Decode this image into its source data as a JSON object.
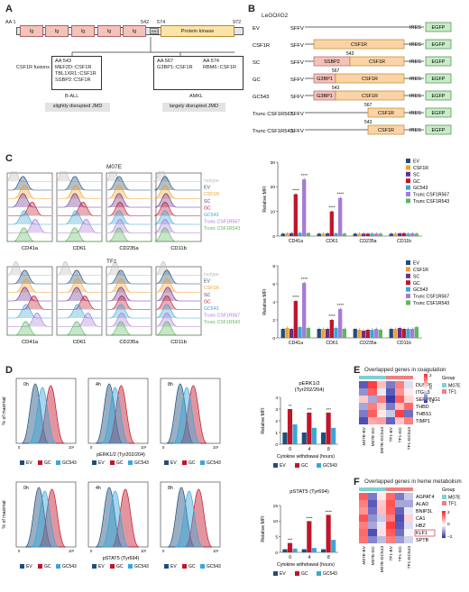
{
  "panels": {
    "A": "A",
    "B": "B",
    "C": "C",
    "D": "D",
    "E": "E",
    "F": "F"
  },
  "panelA": {
    "aa_start": "AA 1",
    "aa_end": "972",
    "aa_542": "542",
    "aa_574": "574",
    "domains": [
      "Ig",
      "Ig",
      "Ig",
      "Ig",
      "Ig"
    ],
    "jmd_label": "JMD",
    "kinase_label": "Protein kinase",
    "fusions_label": "CSF1R fusions",
    "ball_box": [
      "AA 543",
      "MEF2D::CSF1R",
      "TBL1XR1::CSF1R",
      "SSBP2::CSF1R"
    ],
    "amkl_box1": [
      "AA 567",
      "G3BP1::CSF1R"
    ],
    "amkl_box2": [
      "AA 574",
      "RBM6::CSF1R"
    ],
    "ball_label": "B-ALL",
    "amkl_label": "AMKL",
    "ball_jmd": "slightly disrupted JMD",
    "amkl_jmd": "largely disrupted JMD"
  },
  "panelB": {
    "title": "LeGO/iG2",
    "constructs": [
      {
        "name": "EV",
        "promoter": "SFFV",
        "parts": [],
        "ires": "IRES",
        "egfp": "EGFP",
        "num": ""
      },
      {
        "name": "CSF1R",
        "promoter": "SFFV",
        "parts": [
          "CSF1R"
        ],
        "ires": "IRES",
        "egfp": "EGFP",
        "num": ""
      },
      {
        "name": "SC",
        "promoter": "SFFV",
        "parts": [
          "SSBP2",
          "CSF1R"
        ],
        "ires": "IRES",
        "egfp": "EGFP",
        "num": "543"
      },
      {
        "name": "GC",
        "promoter": "SFFV",
        "parts": [
          "G3BP1",
          "CSF1R"
        ],
        "ires": "IRES",
        "egfp": "EGFP",
        "num": "567"
      },
      {
        "name": "GC543",
        "promoter": "SFFV",
        "parts": [
          "G3BP1",
          "CSF1R"
        ],
        "ires": "IRES",
        "egfp": "EGFP",
        "num": "543"
      },
      {
        "name": "Trunc CSF1R567",
        "promoter": "SFFV",
        "parts": [
          "CSF1R"
        ],
        "ires": "IRES",
        "egfp": "EGFP",
        "num": "567"
      },
      {
        "name": "Trunc CSF1R543",
        "promoter": "SFFV",
        "parts": [
          "CSF1R"
        ],
        "ires": "IRES",
        "egfp": "EGFP",
        "num": "543"
      }
    ]
  },
  "panelC": {
    "m07e_title": "M07E",
    "tf1_title": "TF1",
    "markers": [
      "CD41a",
      "CD61",
      "CD235a",
      "CD11b"
    ],
    "legend_hist": [
      "Isotype",
      "EV",
      "CSF1R",
      "SC",
      "GC",
      "GC543",
      "Trunc CSF1R567",
      "Trunc CSF1R543"
    ],
    "ylabel": "Relative MFI",
    "legend_bar": [
      "EV",
      "CSF1R",
      "SC",
      "GC",
      "GC543",
      "Trunc CSF1R567",
      "Trunc CSF1R543"
    ],
    "sig": "****"
  },
  "panelD": {
    "erk_axis": "pERK1/2 (Tyr202/204)",
    "stat_axis": "pSTAT5 (Tyr694)",
    "hist_ylabel": "% of maximal",
    "times": [
      "0h",
      "4h",
      "8h"
    ],
    "legend": [
      "EV",
      "GC",
      "GC543"
    ],
    "erk_title": "pERK1/2",
    "erk_sub": "(Tyr202/204)",
    "stat_title": "pSTAT5 (Tyr694)",
    "bar_ylabel": "Relative MFI",
    "xlabel": "Cytokine withdrawal (hours)",
    "xticks": [
      "0",
      "4",
      "8"
    ],
    "sig": [
      "**",
      "***",
      "***",
      "****",
      "*"
    ]
  },
  "panelE": {
    "title": "Overlapped genes in coagulation",
    "genes": [
      "DUSP6",
      "ITGB3",
      "SERPING1",
      "THBD",
      "THBS1",
      "TIMP1"
    ],
    "columns": [
      "M07E-EV",
      "M07E-GC",
      "M07E-GC543",
      "TF1-EV",
      "TF1-GC",
      "TF1-GC543"
    ],
    "legend_title": "Group",
    "groups": [
      "M07E",
      "TF1"
    ],
    "scale": [
      "2",
      "0",
      "−2"
    ]
  },
  "panelF": {
    "title": "Overlapped genes in heme metabolism",
    "genes": [
      "AGPAT4",
      "ALAD",
      "BNIP3L",
      "CA1",
      "HBZ",
      "KLF1",
      "SPTB"
    ],
    "columns": [
      "M07E-EV",
      "M07E-GC",
      "M07E-GC543",
      "TF1-EV",
      "TF1-GC",
      "TF1-GC543"
    ],
    "legend_title": "Group",
    "groups": [
      "M07E",
      "TF1"
    ],
    "scale": [
      "2",
      "0",
      "−2"
    ]
  },
  "colors": {
    "EV": "#1f4e79",
    "CSF1R": "#f0a030",
    "SC": "#6b2f8a",
    "GC": "#c0152a",
    "GC543": "#3aa6d8",
    "Trunc567": "#a67bd6",
    "Trunc543": "#5cb85c",
    "Isotype": "#bbbbbb",
    "M07E": "#7fd1d1",
    "TF1": "#f08080"
  },
  "chart_data": [
    {
      "type": "bar",
      "title": "M07E",
      "ylabel": "Relative MFI",
      "categories": [
        "CD41a",
        "CD61",
        "CD235a",
        "CD11b"
      ],
      "ylim": [
        0,
        30
      ],
      "series": [
        {
          "name": "EV",
          "values": [
            1,
            1,
            1,
            1
          ]
        },
        {
          "name": "CSF1R",
          "values": [
            1.1,
            1.0,
            1.0,
            1.0
          ]
        },
        {
          "name": "SC",
          "values": [
            1.2,
            1.1,
            1.0,
            1.1
          ]
        },
        {
          "name": "GC",
          "values": [
            17,
            10,
            1.0,
            1.2
          ]
        },
        {
          "name": "GC543",
          "values": [
            1.3,
            1.1,
            1.0,
            1.0
          ]
        },
        {
          "name": "Trunc CSF1R567",
          "values": [
            23,
            15.5,
            1.0,
            1.1
          ]
        },
        {
          "name": "Trunc CSF1R543",
          "values": [
            1.2,
            1.0,
            1.0,
            1.0
          ]
        }
      ]
    },
    {
      "type": "bar",
      "title": "TF1",
      "ylabel": "Relative MFI",
      "categories": [
        "CD41a",
        "CD61",
        "CD235a",
        "CD11b"
      ],
      "ylim": [
        0,
        8
      ],
      "series": [
        {
          "name": "EV",
          "values": [
            1,
            1,
            1,
            1
          ]
        },
        {
          "name": "CSF1R",
          "values": [
            1.1,
            1.0,
            0.9,
            1.0
          ]
        },
        {
          "name": "SC",
          "values": [
            1.0,
            1.0,
            0.8,
            1.1
          ]
        },
        {
          "name": "GC",
          "values": [
            4.1,
            2.0,
            0.9,
            1.0
          ]
        },
        {
          "name": "GC543",
          "values": [
            1.2,
            1.1,
            0.9,
            1.0
          ]
        },
        {
          "name": "Trunc CSF1R567",
          "values": [
            6.1,
            3.2,
            1.0,
            1.0
          ]
        },
        {
          "name": "Trunc CSF1R543",
          "values": [
            1.1,
            1.0,
            0.9,
            1.2
          ]
        }
      ]
    },
    {
      "type": "bar",
      "title": "pERK1/2 (Tyr202/204)",
      "ylabel": "Relative MFI",
      "xlabel": "Cytokine withdrawal (hours)",
      "categories": [
        "0",
        "4",
        "8"
      ],
      "ylim": [
        0,
        4
      ],
      "series": [
        {
          "name": "EV",
          "values": [
            1,
            1,
            1
          ]
        },
        {
          "name": "GC",
          "values": [
            3.0,
            2.7,
            2.7
          ]
        },
        {
          "name": "GC543",
          "values": [
            1.7,
            1.4,
            1.4
          ]
        }
      ]
    },
    {
      "type": "bar",
      "title": "pSTAT5 (Tyr694)",
      "ylabel": "Relative MFI",
      "xlabel": "Cytokine withdrawal (hours)",
      "categories": [
        "0",
        "4",
        "8"
      ],
      "ylim": [
        0,
        15
      ],
      "series": [
        {
          "name": "EV",
          "values": [
            1,
            1,
            1
          ]
        },
        {
          "name": "GC",
          "values": [
            3.0,
            10.0,
            12.0
          ]
        },
        {
          "name": "GC543",
          "values": [
            1.2,
            1.4,
            4.0
          ]
        }
      ]
    },
    {
      "type": "heatmap",
      "title": "Overlapped genes in coagulation",
      "rows": [
        "DUSP6",
        "ITGB3",
        "SERPING1",
        "THBD",
        "THBS1",
        "TIMP1"
      ],
      "columns": [
        "M07E-EV",
        "M07E-GC",
        "M07E-GC543",
        "TF1-EV",
        "TF1-GC",
        "TF1-GC543"
      ],
      "range": [
        -2,
        2
      ],
      "values": [
        [
          -1.5,
          1.8,
          0.6,
          -1.2,
          1.2,
          -0.3
        ],
        [
          -1.0,
          1.5,
          -0.2,
          -1.5,
          1.0,
          0.2
        ],
        [
          0.5,
          -0.8,
          1.2,
          -1.8,
          1.5,
          0.4
        ],
        [
          -0.8,
          1.2,
          0.5,
          -1.2,
          0.6,
          1.4
        ],
        [
          -1.2,
          1.5,
          0.2,
          -0.5,
          1.8,
          -1.3
        ],
        [
          -1.6,
          0.8,
          0.9,
          -1.4,
          0.5,
          1.2
        ]
      ]
    },
    {
      "type": "heatmap",
      "title": "Overlapped genes in heme metabolism",
      "rows": [
        "AGPAT4",
        "ALAD",
        "BNIP3L",
        "CA1",
        "HBZ",
        "KLF1",
        "SPTB"
      ],
      "columns": [
        "M07E-EV",
        "M07E-GC",
        "M07E-GC543",
        "TF1-EV",
        "TF1-GC",
        "TF1-GC543"
      ],
      "range": [
        -2,
        2
      ],
      "values": [
        [
          1.5,
          -1.2,
          0.2,
          1.4,
          -1.2,
          -0.5
        ],
        [
          1.2,
          -1.5,
          0.5,
          1.6,
          -0.8,
          -0.8
        ],
        [
          1.0,
          -1.3,
          0.6,
          1.5,
          -1.4,
          -0.2
        ],
        [
          1.6,
          -1.0,
          -0.5,
          1.2,
          -1.6,
          0.4
        ],
        [
          1.2,
          -0.8,
          -0.2,
          1.8,
          -1.5,
          -0.3
        ],
        [
          1.4,
          -1.6,
          0.3,
          1.5,
          -1.3,
          -0.1
        ],
        [
          1.3,
          -1.1,
          -0.6,
          1.2,
          -0.9,
          -0.4
        ]
      ]
    }
  ]
}
